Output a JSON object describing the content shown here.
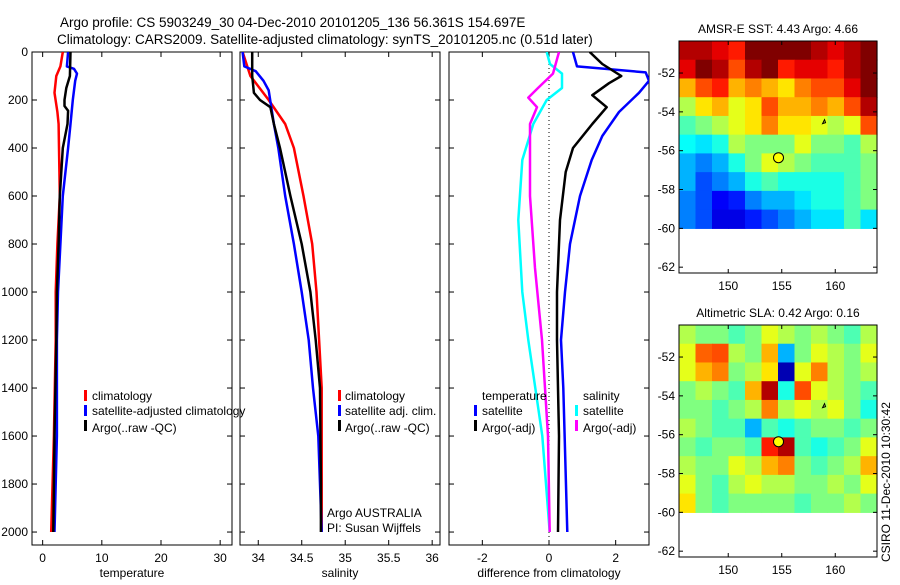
{
  "title": {
    "line1": "Argo profile: CS 5903249_30 04-Dec-2010 20101205_136 56.361S 154.697E",
    "line2": "Climatology: CARS2009. Satellite-adjusted climatology: synTS_20101205.nc (0.51d later)"
  },
  "footer_stamp": "CSIRO 11-Dec-2010 10:30:42",
  "credits": {
    "line1": "Argo AUSTRALIA",
    "line2": "PI: Susan Wijffels"
  },
  "colors": {
    "climatology": "#ff0000",
    "satellite": "#0000ff",
    "argo": "#000000",
    "sal_satellite": "#00ffff",
    "sal_argo": "#ff00ff"
  },
  "chart_data": [
    {
      "type": "line",
      "name": "temperature",
      "xlabel": "temperature",
      "ylabel": "",
      "xlim": [
        -1.8,
        32
      ],
      "ylim": [
        0,
        2054
      ],
      "yreversed": true,
      "xticks": [
        "0",
        "10",
        "20",
        "30"
      ],
      "xtick_values": [
        0,
        10,
        20,
        30
      ],
      "yticks": [
        "0",
        "200",
        "400",
        "600",
        "800",
        "1000",
        "1200",
        "1400",
        "1600",
        "1800",
        "2000"
      ],
      "ytick_values": [
        0,
        200,
        400,
        600,
        800,
        1000,
        1200,
        1400,
        1600,
        1800,
        2000
      ],
      "legend": [
        "climatology",
        "satellite-adjusted climatology",
        "Argo(..raw -QC)"
      ],
      "series": [
        {
          "name": "climatology",
          "color": "#ff0000",
          "points": [
            [
              0,
              3.4
            ],
            [
              60,
              3.0
            ],
            [
              100,
              2.3
            ],
            [
              170,
              2.0
            ],
            [
              250,
              2.5
            ],
            [
              300,
              2.7
            ],
            [
              600,
              2.9
            ],
            [
              800,
              2.5
            ],
            [
              1000,
              2.2
            ],
            [
              1200,
              2.2
            ],
            [
              1600,
              1.9
            ],
            [
              2000,
              1.45
            ]
          ]
        },
        {
          "name": "satellite-adjusted climatology",
          "color": "#0000ff",
          "points": [
            [
              0,
              4.3
            ],
            [
              60,
              4.1
            ],
            [
              70,
              5.3
            ],
            [
              90,
              5.8
            ],
            [
              120,
              5.5
            ],
            [
              200,
              5.1
            ],
            [
              300,
              4.7
            ],
            [
              400,
              4.3
            ],
            [
              600,
              3.4
            ],
            [
              800,
              3.0
            ],
            [
              1000,
              2.6
            ],
            [
              1200,
              2.4
            ],
            [
              1600,
              2.4
            ],
            [
              2000,
              2.0
            ]
          ]
        },
        {
          "name": "Argo(..raw -QC)",
          "color": "#000000",
          "points": [
            [
              0,
              4.7
            ],
            [
              100,
              4.6
            ],
            [
              150,
              4.0
            ],
            [
              200,
              3.7
            ],
            [
              225,
              3.7
            ],
            [
              245,
              4.3
            ],
            [
              300,
              4.2
            ],
            [
              400,
              3.4
            ],
            [
              600,
              2.9
            ],
            [
              800,
              2.7
            ],
            [
              1000,
              2.4
            ],
            [
              1200,
              2.3
            ],
            [
              1600,
              2.0
            ],
            [
              2000,
              1.8
            ]
          ]
        }
      ]
    },
    {
      "type": "line",
      "name": "salinity",
      "xlabel": "salinity",
      "xlim": [
        33.79,
        36.09
      ],
      "ylim": [
        0,
        2054
      ],
      "yreversed": true,
      "xticks": [
        "34",
        "34.5",
        "35",
        "35.5",
        "36"
      ],
      "xtick_values": [
        34,
        34.5,
        35,
        35.5,
        36
      ],
      "legend": [
        "climatology",
        "satellite adj. clim.",
        "Argo(..raw -QC)"
      ],
      "series": [
        {
          "name": "climatology",
          "color": "#ff0000",
          "points": [
            [
              0,
              33.82
            ],
            [
              100,
              33.91
            ],
            [
              200,
              34.12
            ],
            [
              300,
              34.31
            ],
            [
              400,
              34.41
            ],
            [
              600,
              34.52
            ],
            [
              800,
              34.62
            ],
            [
              1000,
              34.67
            ],
            [
              1200,
              34.7
            ],
            [
              1400,
              34.73
            ],
            [
              2000,
              34.73
            ]
          ]
        },
        {
          "name": "satellite adj. clim.",
          "color": "#0000ff",
          "points": [
            [
              0,
              33.82
            ],
            [
              60,
              33.84
            ],
            [
              80,
              33.97
            ],
            [
              120,
              34.06
            ],
            [
              160,
              34.12
            ],
            [
              300,
              34.18
            ],
            [
              400,
              34.23
            ],
            [
              600,
              34.31
            ],
            [
              800,
              34.41
            ],
            [
              1000,
              34.5
            ],
            [
              1200,
              34.58
            ],
            [
              1400,
              34.63
            ],
            [
              1600,
              34.69
            ],
            [
              2000,
              34.73
            ]
          ]
        },
        {
          "name": "Argo(..raw -QC)",
          "color": "#000000",
          "points": [
            [
              0,
              33.93
            ],
            [
              100,
              33.93
            ],
            [
              170,
              33.95
            ],
            [
              200,
              34.02
            ],
            [
              230,
              34.14
            ],
            [
              300,
              34.18
            ],
            [
              400,
              34.25
            ],
            [
              600,
              34.37
            ],
            [
              800,
              34.5
            ],
            [
              1000,
              34.6
            ],
            [
              1200,
              34.66
            ],
            [
              1400,
              34.71
            ],
            [
              1800,
              34.72
            ],
            [
              2000,
              34.72
            ]
          ]
        }
      ]
    },
    {
      "type": "line",
      "name": "difference",
      "xlabel": "difference from climatology",
      "xlim": [
        -3,
        3
      ],
      "ylim": [
        0,
        2054
      ],
      "yreversed": true,
      "xticks": [
        "-2",
        "0",
        "2"
      ],
      "xtick_values": [
        -2,
        0,
        2
      ],
      "legend_groups": [
        {
          "title": "temperature",
          "items": [
            "satellite",
            "Argo(-adj)"
          ]
        },
        {
          "title": "salinity",
          "items": [
            "satellite",
            "Argo(-adj)"
          ]
        }
      ],
      "series": [
        {
          "name": "temperature satellite",
          "color": "#0000ff",
          "points": [
            [
              0,
              0.72
            ],
            [
              60,
              0.84
            ],
            [
              85,
              2.9
            ],
            [
              120,
              3.0
            ],
            [
              170,
              2.7
            ],
            [
              250,
              2.1
            ],
            [
              350,
              1.6
            ],
            [
              450,
              1.28
            ],
            [
              600,
              0.93
            ],
            [
              800,
              0.63
            ],
            [
              1000,
              0.48
            ],
            [
              1200,
              0.36
            ],
            [
              1400,
              0.43
            ],
            [
              2000,
              0.55
            ]
          ]
        },
        {
          "name": "temperature Argo(-adj)",
          "color": "#000000",
          "points": [
            [
              0,
              1.22
            ],
            [
              50,
              1.6
            ],
            [
              100,
              2.17
            ],
            [
              130,
              1.8
            ],
            [
              180,
              1.3
            ],
            [
              230,
              1.73
            ],
            [
              300,
              1.3
            ],
            [
              400,
              0.72
            ],
            [
              500,
              0.5
            ],
            [
              700,
              0.33
            ],
            [
              1000,
              0.24
            ],
            [
              1200,
              0.24
            ],
            [
              1600,
              0.3
            ],
            [
              2000,
              0.27
            ]
          ]
        },
        {
          "name": "salinity satellite",
          "color": "#00ffff",
          "points": [
            [
              0,
              -0.07
            ],
            [
              50,
              0.03
            ],
            [
              90,
              0.39
            ],
            [
              150,
              0.39
            ],
            [
              200,
              -0.07
            ],
            [
              300,
              -0.47
            ],
            [
              450,
              -0.8
            ],
            [
              700,
              -0.92
            ],
            [
              1000,
              -0.8
            ],
            [
              1200,
              -0.62
            ],
            [
              1600,
              -0.2
            ],
            [
              2000,
              0.02
            ]
          ]
        },
        {
          "name": "salinity Argo(-adj)",
          "color": "#ff00ff",
          "points": [
            [
              0,
              0.3
            ],
            [
              90,
              0.12
            ],
            [
              150,
              -0.33
            ],
            [
              190,
              -0.62
            ],
            [
              230,
              -0.36
            ],
            [
              300,
              -0.57
            ],
            [
              600,
              -0.57
            ],
            [
              900,
              -0.42
            ],
            [
              1200,
              -0.21
            ],
            [
              1600,
              -0.03
            ],
            [
              2000,
              0.02
            ]
          ]
        }
      ]
    },
    {
      "type": "heatmap",
      "name": "sst-map",
      "title": "AMSR-E SST: 4.43 Argo: 4.66",
      "xlim": [
        145.4,
        163.9
      ],
      "ylim": [
        -62.3,
        -50.35
      ],
      "data_lat_range": [
        -60,
        -50.35
      ],
      "xticks": [
        "150",
        "155",
        "160"
      ],
      "xtick_values": [
        150,
        155,
        160
      ],
      "yticks": [
        "-52",
        "-54",
        "-56",
        "-58",
        "-60",
        "-62"
      ],
      "ytick_values": [
        -52,
        -54,
        -56,
        -58,
        -60,
        -62
      ],
      "argo_point": [
        154.697,
        -56.361
      ],
      "colormap": "jet",
      "grid": [
        [
          0.95,
          0.95,
          0.9,
          0.85,
          1,
          1,
          1,
          1,
          0.95,
          0.9,
          0.95,
          1
        ],
        [
          0.9,
          1,
          0.95,
          0.8,
          0.95,
          1,
          0.85,
          0.9,
          0.9,
          0.85,
          0.95,
          1
        ],
        [
          0.7,
          0.8,
          0.85,
          0.7,
          0.75,
          0.7,
          0.65,
          0.75,
          0.8,
          0.8,
          0.9,
          1
        ],
        [
          0.55,
          0.65,
          0.7,
          0.6,
          0.65,
          0.8,
          0.7,
          0.7,
          0.75,
          0.7,
          0.8,
          0.95
        ],
        [
          0.45,
          0.5,
          0.55,
          0.6,
          0.65,
          0.75,
          0.65,
          0.65,
          0.6,
          0.55,
          0.6,
          0.8
        ],
        [
          0.38,
          0.35,
          0.4,
          0.55,
          0.5,
          0.5,
          0.5,
          0.6,
          0.5,
          0.5,
          0.45,
          0.55
        ],
        [
          0.3,
          0.25,
          0.3,
          0.4,
          0.5,
          0.6,
          0.55,
          0.5,
          0.45,
          0.45,
          0.45,
          0.5
        ],
        [
          0.3,
          0.2,
          0.25,
          0.3,
          0.4,
          0.45,
          0.4,
          0.4,
          0.4,
          0.4,
          0.45,
          0.5
        ],
        [
          0.25,
          0.2,
          0.12,
          0.15,
          0.25,
          0.3,
          0.3,
          0.35,
          0.4,
          0.4,
          0.45,
          0.5
        ],
        [
          0.25,
          0.2,
          0.1,
          0.1,
          0.15,
          0.2,
          0.25,
          0.3,
          0.35,
          0.35,
          0.45,
          0.35
        ]
      ]
    },
    {
      "type": "heatmap",
      "name": "sla-map",
      "title": "Altimetric SLA: 0.42 Argo: 0.16",
      "xlim": [
        145.4,
        163.9
      ],
      "ylim": [
        -62.3,
        -50.35
      ],
      "data_lat_range": [
        -60,
        -50.35
      ],
      "xticks": [
        "150",
        "155",
        "160"
      ],
      "xtick_values": [
        150,
        155,
        160
      ],
      "yticks": [
        "-52",
        "-54",
        "-56",
        "-58",
        "-60",
        "-62"
      ],
      "ytick_values": [
        -52,
        -54,
        -56,
        -58,
        -60,
        -62
      ],
      "argo_point": [
        154.697,
        -56.361
      ],
      "colormap": "jet",
      "grid": [
        [
          0.55,
          0.5,
          0.5,
          0.45,
          0.5,
          0.6,
          0.55,
          0.5,
          0.55,
          0.5,
          0.45,
          0.55
        ],
        [
          0.6,
          0.78,
          0.8,
          0.55,
          0.5,
          0.7,
          0.3,
          0.5,
          0.6,
          0.55,
          0.5,
          0.6
        ],
        [
          0.6,
          0.7,
          0.75,
          0.5,
          0.55,
          0.65,
          0.05,
          0.6,
          0.75,
          0.55,
          0.5,
          0.55
        ],
        [
          0.5,
          0.55,
          0.5,
          0.45,
          0.7,
          0.95,
          0.4,
          0.8,
          0.6,
          0.55,
          0.5,
          0.45
        ],
        [
          0.5,
          0.5,
          0.45,
          0.5,
          0.55,
          0.75,
          0.55,
          0.6,
          0.55,
          0.6,
          0.5,
          0.4
        ],
        [
          0.55,
          0.5,
          0.45,
          0.45,
          0.3,
          0.45,
          0.4,
          0.45,
          0.5,
          0.5,
          0.45,
          0.5
        ],
        [
          0.5,
          0.45,
          0.5,
          0.5,
          0.45,
          0.85,
          0.95,
          0.45,
          0.4,
          0.45,
          0.5,
          0.6
        ],
        [
          0.55,
          0.5,
          0.5,
          0.6,
          0.55,
          0.7,
          0.75,
          0.5,
          0.45,
          0.5,
          0.55,
          0.7
        ],
        [
          0.6,
          0.5,
          0.45,
          0.55,
          0.6,
          0.55,
          0.55,
          0.5,
          0.5,
          0.55,
          0.5,
          0.6
        ],
        [
          0.65,
          0.5,
          0.45,
          0.5,
          0.5,
          0.5,
          0.5,
          0.45,
          0.5,
          0.5,
          0.55,
          0.5
        ]
      ]
    }
  ]
}
